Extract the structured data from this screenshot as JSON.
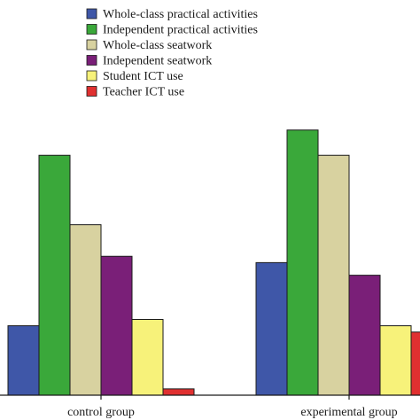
{
  "chart_data": {
    "type": "bar",
    "title": "",
    "xlabel": "",
    "ylabel": "",
    "categories": [
      "control group",
      "experimental group"
    ],
    "series": [
      {
        "name": "Whole-class practical activities",
        "color": "#3f57a8",
        "values": [
          11,
          21
        ]
      },
      {
        "name": "Independent practical activities",
        "color": "#3aa83a",
        "values": [
          38,
          42
        ]
      },
      {
        "name": "Whole-class seatwork",
        "color": "#d8d2a0",
        "values": [
          27,
          38
        ]
      },
      {
        "name": "Independent seatwork",
        "color": "#7a1f78",
        "values": [
          22,
          19
        ]
      },
      {
        "name": "Student ICT use",
        "color": "#f7f27a",
        "values": [
          12,
          11
        ]
      },
      {
        "name": "Teacher ICT use",
        "color": "#e03030",
        "values": [
          1,
          10
        ]
      }
    ],
    "ylim": [
      0,
      48
    ],
    "grid": false,
    "legend_position": "top-center"
  }
}
